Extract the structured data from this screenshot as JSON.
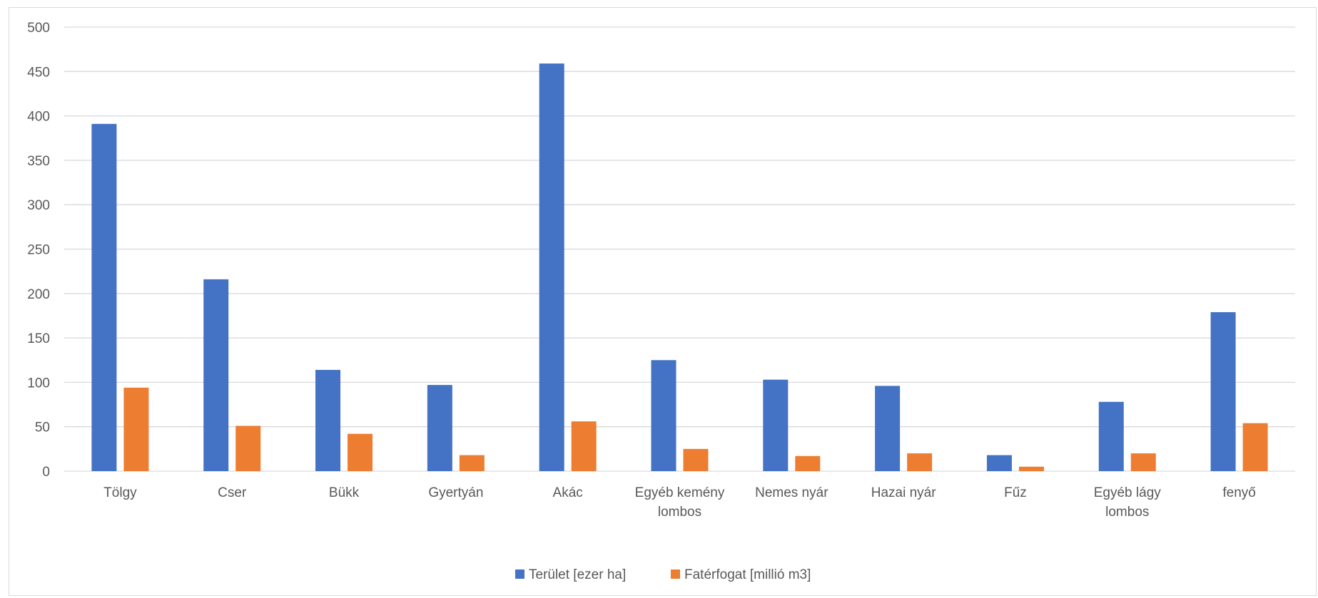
{
  "chart_data": {
    "type": "bar",
    "categories": [
      [
        "Tölgy"
      ],
      [
        "Cser"
      ],
      [
        "Bükk"
      ],
      [
        "Gyertyán"
      ],
      [
        "Akác"
      ],
      [
        "Egyéb kemény",
        "lombos"
      ],
      [
        "Nemes nyár"
      ],
      [
        "Hazai nyár"
      ],
      [
        "Fűz"
      ],
      [
        "Egyéb lágy",
        "lombos"
      ],
      [
        "fenyő"
      ]
    ],
    "series": [
      {
        "name": "Terület [ezer ha]",
        "color": "#4472c4",
        "values": [
          391,
          216,
          114,
          97,
          459,
          125,
          103,
          96,
          18,
          78,
          179
        ]
      },
      {
        "name": "Fatérfogat [millió m3]",
        "color": "#ed7d31",
        "values": [
          94,
          51,
          42,
          18,
          56,
          25,
          17,
          20,
          5,
          20,
          54
        ]
      }
    ],
    "title": "",
    "xlabel": "",
    "ylabel": "",
    "ylim": [
      0,
      500
    ],
    "yticks": [
      0,
      50,
      100,
      150,
      200,
      250,
      300,
      350,
      400,
      450,
      500
    ],
    "grid": true,
    "legend": "bottom-center"
  }
}
